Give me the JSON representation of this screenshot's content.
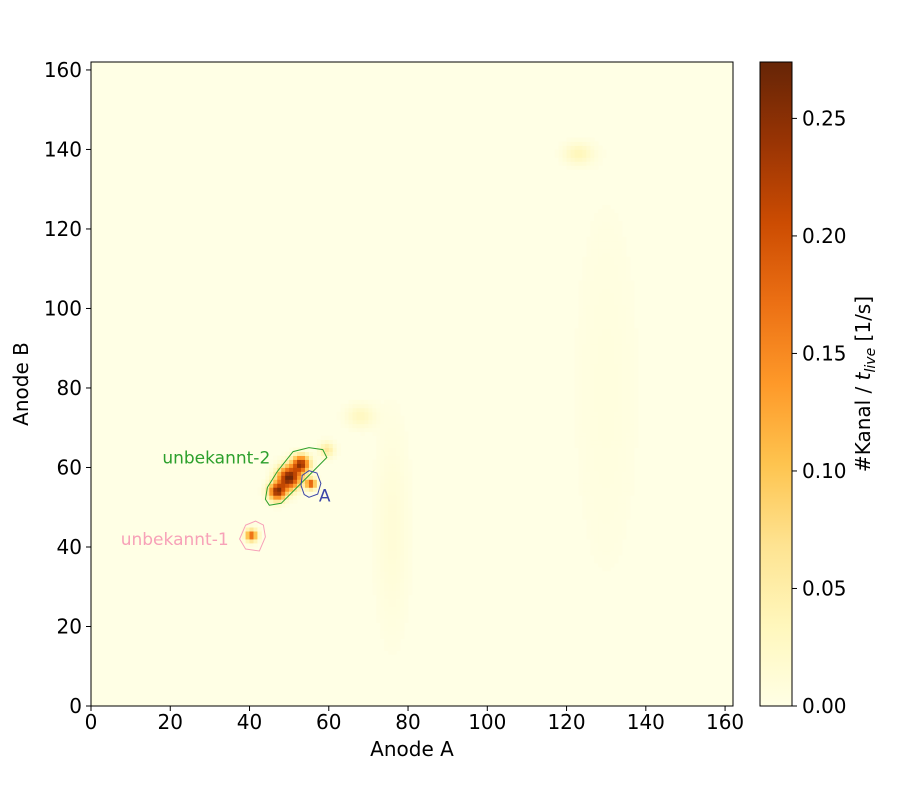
{
  "chart_data": {
    "type": "heatmap",
    "xlabel": "Anode A",
    "ylabel": "Anode B",
    "xlim": [
      0,
      162
    ],
    "ylim": [
      0,
      162
    ],
    "xticks": [
      "0",
      "20",
      "40",
      "60",
      "80",
      "100",
      "120",
      "140",
      "160"
    ],
    "yticks": [
      "0",
      "20",
      "40",
      "60",
      "80",
      "100",
      "120",
      "140",
      "160"
    ],
    "colorbar": {
      "label": "#Kanal / t_live [1/s]",
      "label_parts": {
        "prefix": "#Kanal / ",
        "var": "t",
        "sub": "live",
        "suffix": " [1/s]"
      },
      "range": [
        0.0,
        0.274
      ],
      "ticks": [
        "0.00",
        "0.05",
        "0.10",
        "0.15",
        "0.20",
        "0.25"
      ],
      "colormap": "YlOrBr",
      "colors": [
        "#ffffe5",
        "#fff7bc",
        "#fee391",
        "#fec44f",
        "#fe9929",
        "#ec7014",
        "#cc4c02",
        "#993404",
        "#662506"
      ]
    },
    "hotspots": [
      {
        "x": 50.0,
        "y": 57.5,
        "intensity": 0.27,
        "sx": 2.0,
        "sy": 2.0
      },
      {
        "x": 47.0,
        "y": 54.0,
        "intensity": 0.24,
        "sx": 1.5,
        "sy": 1.5
      },
      {
        "x": 53.0,
        "y": 61.0,
        "intensity": 0.23,
        "sx": 1.5,
        "sy": 1.5
      },
      {
        "x": 55.5,
        "y": 56.0,
        "intensity": 0.2,
        "sx": 0.9,
        "sy": 0.9
      },
      {
        "x": 40.5,
        "y": 43.0,
        "intensity": 0.19,
        "sx": 1.0,
        "sy": 1.0
      },
      {
        "x": 59.5,
        "y": 64.5,
        "intensity": 0.06,
        "sx": 1.3,
        "sy": 1.3
      },
      {
        "x": 68.0,
        "y": 73.0,
        "intensity": 0.03,
        "sx": 2.5,
        "sy": 2.0
      },
      {
        "x": 123.0,
        "y": 139.0,
        "intensity": 0.035,
        "sx": 2.5,
        "sy": 1.8
      },
      {
        "x": 76.0,
        "y": 45.0,
        "intensity": 0.012,
        "sx": 3.0,
        "sy": 18.0
      },
      {
        "x": 130.0,
        "y": 80.0,
        "intensity": 0.006,
        "sx": 6.0,
        "sy": 35.0
      }
    ],
    "regions": [
      {
        "name": "unbekannt-2",
        "color": "#2ca02c",
        "label_at": [
          18,
          61
        ],
        "polygon": [
          [
            45,
            50.5
          ],
          [
            48,
            51
          ],
          [
            53,
            56
          ],
          [
            57,
            60
          ],
          [
            59.5,
            62.5
          ],
          [
            58.5,
            64.5
          ],
          [
            55,
            65
          ],
          [
            51,
            64
          ],
          [
            47,
            59
          ],
          [
            44.5,
            55
          ],
          [
            44,
            52
          ]
        ]
      },
      {
        "name": "A",
        "color": "#3b45a8",
        "label_at": [
          57.5,
          51.5
        ],
        "polygon": [
          [
            55,
            52.5
          ],
          [
            57.2,
            53.3
          ],
          [
            58,
            56
          ],
          [
            57,
            58.6
          ],
          [
            55,
            59.2
          ],
          [
            53.3,
            58
          ],
          [
            53,
            55.5
          ],
          [
            53.8,
            53.2
          ]
        ]
      },
      {
        "name": "unbekannt-1",
        "color": "#f7a1b8",
        "label_at": [
          7.5,
          40.5
        ],
        "polygon": [
          [
            39,
            39.5
          ],
          [
            42.5,
            39
          ],
          [
            44,
            42.5
          ],
          [
            43.5,
            45.5
          ],
          [
            41.5,
            46.5
          ],
          [
            39,
            45.5
          ],
          [
            37.5,
            42
          ]
        ]
      }
    ]
  }
}
